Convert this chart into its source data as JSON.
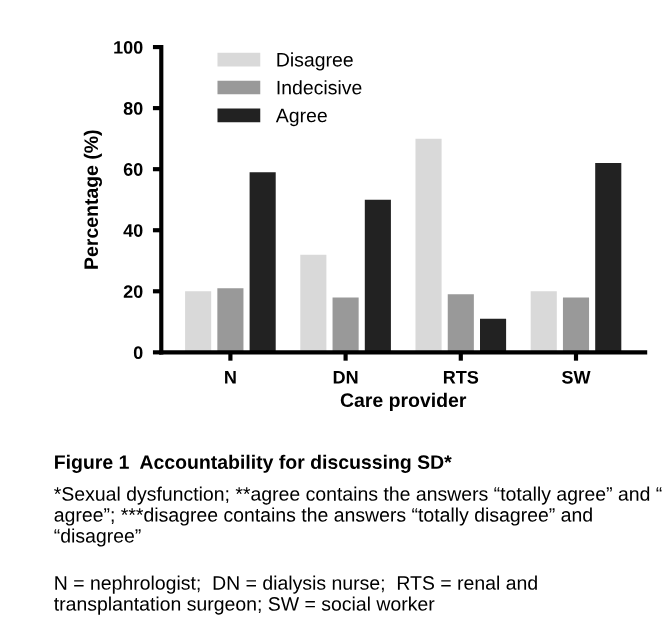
{
  "chart_data": {
    "type": "bar",
    "xlabel": "Care provider",
    "ylabel": "Percentage (%)",
    "categories": [
      "N",
      "DN",
      "RTS",
      "SW"
    ],
    "series": [
      {
        "name": "Disagree",
        "color": "#d9d9d9",
        "values": [
          20,
          32,
          70,
          20
        ]
      },
      {
        "name": "Indecisive",
        "color": "#999999",
        "values": [
          21,
          18,
          19,
          18
        ]
      },
      {
        "name": "Agree",
        "color": "#222222",
        "values": [
          59,
          50,
          11,
          62
        ]
      }
    ],
    "ylim": [
      0,
      100
    ],
    "yticks": [
      0,
      20,
      40,
      60,
      80,
      100
    ],
    "grid": false,
    "legend": "top left",
    "annotations": [
      "Figure 1  Accountability for discussing SD*",
      "*Sexual dysfunction; **agree contains the answers “totally agree” and “ agree”; ***disagree contains the answers “totally disagree” and “disagree”",
      "N = nephrologist;  DN = dialysis nurse;  RTS = renal and transplantation surgeon; SW = social worker"
    ]
  }
}
